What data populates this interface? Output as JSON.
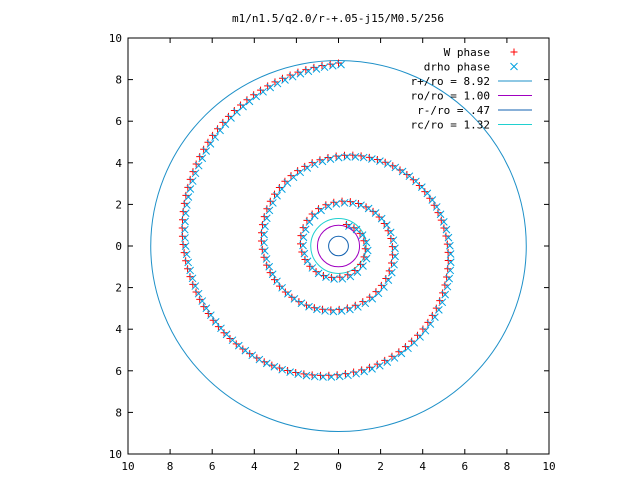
{
  "chart_data": {
    "type": "scatter",
    "title": "m1/n1.5/q2.0/r-+.05-j15/M0.5/256",
    "xlim": [
      -10,
      10
    ],
    "ylim": [
      -10,
      10
    ],
    "xticks": [
      -10,
      -8,
      -6,
      -4,
      -2,
      0,
      2,
      4,
      6,
      8,
      10
    ],
    "yticks": [
      -10,
      -8,
      -6,
      -4,
      -2,
      0,
      2,
      4,
      6,
      8,
      10
    ],
    "xtick_labels": [
      "10",
      "8",
      "6",
      "4",
      "2",
      "0",
      "2",
      "4",
      "6",
      "8",
      "10"
    ],
    "ytick_labels": [
      "10",
      "8",
      "6",
      "4",
      "2",
      "0",
      "2",
      "4",
      "6",
      "8",
      "10"
    ],
    "grid": false,
    "legend_position": "top-right",
    "series": [
      {
        "name": "W phase",
        "marker": "plus",
        "color": "#ff0000",
        "spiral": {
          "theta_start_deg": 90,
          "theta_end_deg": 1150,
          "r_outer": 8.8,
          "r_inner": 1.1,
          "n_points": 175
        }
      },
      {
        "name": "drho phase",
        "marker": "cross",
        "color": "#00a0e0",
        "spiral": {
          "theta_start_deg": 90,
          "theta_end_deg": 1150,
          "r_outer": 8.8,
          "r_inner": 1.1,
          "n_points": 175
        }
      }
    ],
    "circles": [
      {
        "name": "r+/ro = 8.92",
        "radius": 8.92,
        "color": "#1e90c8"
      },
      {
        "name": "ro/ro = 1.00",
        "radius": 1.0,
        "color": "#a000c0"
      },
      {
        "name": "r-/ro = .47",
        "radius": 0.47,
        "color": "#1060b0"
      },
      {
        "name": "rc/ro = 1.32",
        "radius": 1.32,
        "color": "#20d0d0"
      }
    ]
  }
}
